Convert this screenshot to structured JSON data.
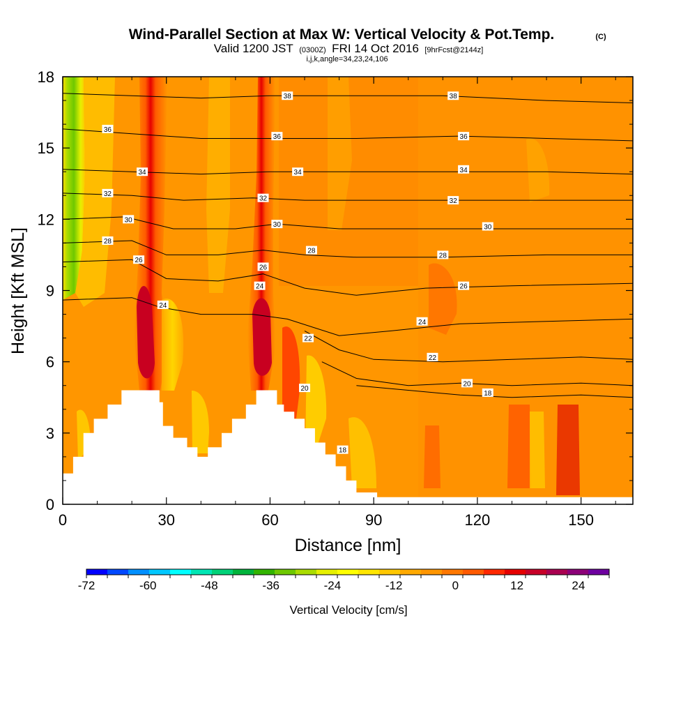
{
  "title": "Wind-Parallel Section at Max W: Vertical Velocity & Pot.Temp.",
  "title_mark": "(C)",
  "subtitle": {
    "valid": "Valid 1200 JST",
    "utc": "(0300Z)",
    "date": "FRI 14 Oct 2016",
    "fcst": "[9hrFcst@2144z]"
  },
  "params": "i,j,k,angle=34,23,24,106",
  "colors": {
    "terrain": "#ffffff",
    "contour": "#000000",
    "plot_border": "#000000"
  },
  "chart_data": {
    "type": "heatmap",
    "xlabel": "Distance [nm]",
    "ylabel": "Height [Kft MSL]",
    "xlim": [
      0,
      165
    ],
    "ylim": [
      0,
      18
    ],
    "x_ticks": [
      "0",
      "30",
      "60",
      "90",
      "120",
      "150"
    ],
    "x_tick_values": [
      0,
      30,
      60,
      90,
      120,
      150
    ],
    "y_ticks": [
      "0",
      "3",
      "6",
      "9",
      "12",
      "15",
      "18"
    ],
    "y_tick_values": [
      0,
      3,
      6,
      9,
      12,
      15,
      18
    ],
    "terrain": [
      [
        0,
        0
      ],
      [
        0,
        1.3
      ],
      [
        3,
        1.3
      ],
      [
        3,
        2.0
      ],
      [
        6,
        2.0
      ],
      [
        6,
        3.0
      ],
      [
        9,
        3.0
      ],
      [
        9,
        3.6
      ],
      [
        13,
        3.6
      ],
      [
        13,
        4.2
      ],
      [
        17,
        4.2
      ],
      [
        17,
        4.8
      ],
      [
        28,
        4.8
      ],
      [
        28,
        4.3
      ],
      [
        29,
        4.3
      ],
      [
        29,
        3.3
      ],
      [
        32,
        3.3
      ],
      [
        32,
        2.8
      ],
      [
        36,
        2.8
      ],
      [
        36,
        2.4
      ],
      [
        39,
        2.4
      ],
      [
        39,
        2.0
      ],
      [
        42,
        2.0
      ],
      [
        42,
        2.4
      ],
      [
        46,
        2.4
      ],
      [
        46,
        3.0
      ],
      [
        49,
        3.0
      ],
      [
        49,
        3.6
      ],
      [
        53,
        3.6
      ],
      [
        53,
        4.2
      ],
      [
        56,
        4.2
      ],
      [
        56,
        4.8
      ],
      [
        62,
        4.8
      ],
      [
        62,
        4.2
      ],
      [
        64,
        4.2
      ],
      [
        64,
        3.9
      ],
      [
        67,
        3.9
      ],
      [
        67,
        3.6
      ],
      [
        70,
        3.6
      ],
      [
        70,
        3.2
      ],
      [
        73,
        3.2
      ],
      [
        73,
        2.6
      ],
      [
        76,
        2.6
      ],
      [
        76,
        2.1
      ],
      [
        79,
        2.1
      ],
      [
        79,
        1.6
      ],
      [
        82,
        1.6
      ],
      [
        82,
        1.0
      ],
      [
        85,
        1.0
      ],
      [
        85,
        0.5
      ],
      [
        91,
        0.5
      ],
      [
        91,
        0.3
      ],
      [
        165,
        0.3
      ],
      [
        165,
        0
      ]
    ],
    "theta_contours": [
      {
        "label": "18",
        "points": [
          [
            85,
            5.0
          ],
          [
            100,
            4.8
          ],
          [
            115,
            4.6
          ],
          [
            130,
            4.5
          ],
          [
            150,
            4.6
          ],
          [
            165,
            4.5
          ]
        ]
      },
      {
        "label": "20",
        "points": [
          [
            75,
            6.0
          ],
          [
            85,
            5.3
          ],
          [
            100,
            5.0
          ],
          [
            115,
            5.1
          ],
          [
            130,
            5.0
          ],
          [
            150,
            5.1
          ],
          [
            165,
            5.0
          ]
        ]
      },
      {
        "label": "22",
        "points": [
          [
            70,
            7.3
          ],
          [
            80,
            6.5
          ],
          [
            90,
            6.1
          ],
          [
            110,
            6.0
          ],
          [
            130,
            6.1
          ],
          [
            150,
            6.2
          ],
          [
            165,
            6.1
          ]
        ]
      },
      {
        "label": "24",
        "points": [
          [
            0,
            8.6
          ],
          [
            20,
            8.7
          ],
          [
            28,
            8.3
          ],
          [
            40,
            8.0
          ],
          [
            55,
            8.0
          ],
          [
            65,
            7.8
          ],
          [
            80,
            7.1
          ],
          [
            95,
            7.3
          ],
          [
            115,
            7.6
          ],
          [
            140,
            7.7
          ],
          [
            165,
            7.8
          ]
        ]
      },
      {
        "label": "26",
        "points": [
          [
            0,
            10.2
          ],
          [
            20,
            10.3
          ],
          [
            30,
            9.5
          ],
          [
            45,
            9.4
          ],
          [
            58,
            9.7
          ],
          [
            70,
            9.1
          ],
          [
            85,
            8.8
          ],
          [
            105,
            9.1
          ],
          [
            130,
            9.2
          ],
          [
            165,
            9.3
          ]
        ]
      },
      {
        "label": "28",
        "points": [
          [
            0,
            11.0
          ],
          [
            20,
            11.1
          ],
          [
            30,
            10.5
          ],
          [
            45,
            10.5
          ],
          [
            58,
            10.7
          ],
          [
            70,
            10.5
          ],
          [
            85,
            10.4
          ],
          [
            110,
            10.4
          ],
          [
            140,
            10.5
          ],
          [
            165,
            10.5
          ]
        ]
      },
      {
        "label": "30",
        "points": [
          [
            0,
            12.0
          ],
          [
            18,
            12.1
          ],
          [
            32,
            11.6
          ],
          [
            50,
            11.6
          ],
          [
            62,
            11.8
          ],
          [
            80,
            11.6
          ],
          [
            100,
            11.6
          ],
          [
            125,
            11.6
          ],
          [
            165,
            11.6
          ]
        ]
      },
      {
        "label": "32",
        "points": [
          [
            0,
            13.1
          ],
          [
            20,
            13.0
          ],
          [
            35,
            12.8
          ],
          [
            55,
            12.9
          ],
          [
            70,
            12.8
          ],
          [
            95,
            12.8
          ],
          [
            120,
            12.8
          ],
          [
            165,
            12.8
          ]
        ]
      },
      {
        "label": "34",
        "points": [
          [
            0,
            14.1
          ],
          [
            20,
            14.0
          ],
          [
            40,
            13.9
          ],
          [
            60,
            14.0
          ],
          [
            80,
            14.0
          ],
          [
            110,
            14.0
          ],
          [
            140,
            14.0
          ],
          [
            165,
            13.9
          ]
        ]
      },
      {
        "label": "36",
        "points": [
          [
            0,
            15.8
          ],
          [
            20,
            15.6
          ],
          [
            40,
            15.4
          ],
          [
            60,
            15.4
          ],
          [
            85,
            15.4
          ],
          [
            115,
            15.5
          ],
          [
            140,
            15.4
          ],
          [
            165,
            15.3
          ]
        ]
      },
      {
        "label": "38",
        "points": [
          [
            0,
            17.3
          ],
          [
            20,
            17.2
          ],
          [
            40,
            17.1
          ],
          [
            60,
            17.2
          ],
          [
            85,
            17.2
          ],
          [
            110,
            17.2
          ],
          [
            140,
            17.0
          ],
          [
            165,
            16.9
          ]
        ]
      }
    ],
    "theta_labels": [
      {
        "label": "38",
        "x": 65,
        "y": 17.2
      },
      {
        "label": "38",
        "x": 113,
        "y": 17.2
      },
      {
        "label": "36",
        "x": 13,
        "y": 15.8
      },
      {
        "label": "36",
        "x": 62,
        "y": 15.5
      },
      {
        "label": "36",
        "x": 116,
        "y": 15.5
      },
      {
        "label": "34",
        "x": 23,
        "y": 14.0
      },
      {
        "label": "34",
        "x": 68,
        "y": 14.0
      },
      {
        "label": "34",
        "x": 116,
        "y": 14.1
      },
      {
        "label": "32",
        "x": 13,
        "y": 13.1
      },
      {
        "label": "32",
        "x": 58,
        "y": 12.9
      },
      {
        "label": "32",
        "x": 113,
        "y": 12.8
      },
      {
        "label": "30",
        "x": 19,
        "y": 12.0
      },
      {
        "label": "30",
        "x": 62,
        "y": 11.8
      },
      {
        "label": "30",
        "x": 123,
        "y": 11.7
      },
      {
        "label": "28",
        "x": 13,
        "y": 11.1
      },
      {
        "label": "28",
        "x": 72,
        "y": 10.7
      },
      {
        "label": "28",
        "x": 110,
        "y": 10.5
      },
      {
        "label": "26",
        "x": 22,
        "y": 10.3
      },
      {
        "label": "26",
        "x": 58,
        "y": 10.0
      },
      {
        "label": "26",
        "x": 116,
        "y": 9.2
      },
      {
        "label": "24",
        "x": 29,
        "y": 8.4
      },
      {
        "label": "24",
        "x": 57,
        "y": 9.2
      },
      {
        "label": "24",
        "x": 104,
        "y": 7.7
      },
      {
        "label": "22",
        "x": 71,
        "y": 7.0
      },
      {
        "label": "22",
        "x": 107,
        "y": 6.2
      },
      {
        "label": "20",
        "x": 70,
        "y": 4.9
      },
      {
        "label": "20",
        "x": 117,
        "y": 5.1
      },
      {
        "label": "18",
        "x": 81,
        "y": 2.3
      },
      {
        "label": "18",
        "x": 123,
        "y": 4.7
      }
    ],
    "colorbar": {
      "label": "Vertical Velocity [cm/s]",
      "tick_labels": [
        "-72",
        "-60",
        "-48",
        "-36",
        "-24",
        "-12",
        "0",
        "12",
        "24"
      ],
      "tick_values": [
        -72,
        -60,
        -48,
        -36,
        -24,
        -12,
        0,
        12,
        24
      ],
      "range": [
        -72,
        30
      ],
      "colors": [
        "#0000ff",
        "#0048ff",
        "#0090ff",
        "#00c8ff",
        "#00ffff",
        "#00e6b4",
        "#00d278",
        "#00b43c",
        "#32b400",
        "#6ec800",
        "#aadc00",
        "#e6f000",
        "#ffff00",
        "#ffe600",
        "#ffc800",
        "#ffaa00",
        "#ff9600",
        "#ff7800",
        "#ff5a00",
        "#ff2800",
        "#e60000",
        "#c80028",
        "#aa0050",
        "#8c0078",
        "#6e00a0"
      ]
    }
  }
}
